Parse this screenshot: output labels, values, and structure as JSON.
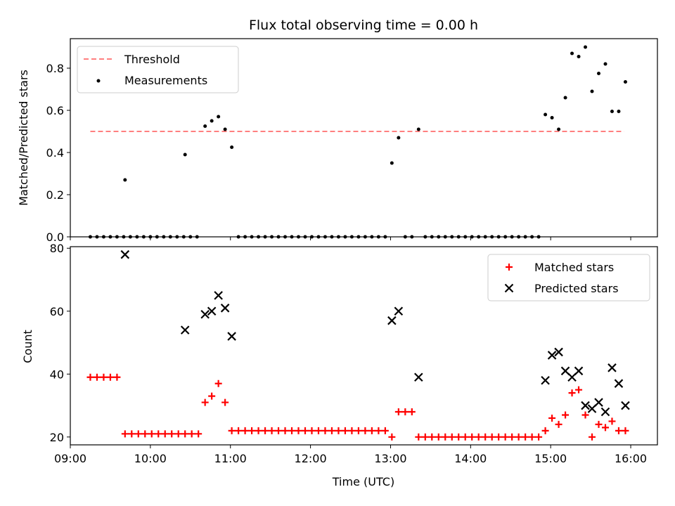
{
  "chart_data": [
    {
      "type": "scatter",
      "title": "Flux total observing time = 0.00 h",
      "xlabel": "",
      "ylabel": "Matched/Predicted stars",
      "xlim": [
        "09:00",
        "16:20"
      ],
      "ylim": [
        0,
        0.94
      ],
      "yticks": [
        0.0,
        0.2,
        0.4,
        0.6,
        0.8
      ],
      "ytick_labels": [
        "0.0",
        "0.2",
        "0.4",
        "0.6",
        "0.8"
      ],
      "legend": {
        "position": "top-left",
        "entries": [
          "Threshold",
          "Measurements"
        ]
      },
      "threshold": {
        "name": "Threshold",
        "value": 0.5,
        "x": [
          "09:15",
          "15:55"
        ],
        "color": "#ff7f7f"
      },
      "series": [
        {
          "name": "Measurements",
          "color": "#000000",
          "points": [
            [
              "09:15",
              0
            ],
            [
              "09:20",
              0
            ],
            [
              "09:25",
              0
            ],
            [
              "09:30",
              0
            ],
            [
              "09:35",
              0
            ],
            [
              "09:40",
              0
            ],
            [
              "09:41",
              0.27
            ],
            [
              "09:45",
              0
            ],
            [
              "09:50",
              0
            ],
            [
              "09:55",
              0
            ],
            [
              "10:00",
              0
            ],
            [
              "10:05",
              0
            ],
            [
              "10:10",
              0
            ],
            [
              "10:15",
              0
            ],
            [
              "10:20",
              0
            ],
            [
              "10:25",
              0
            ],
            [
              "10:26",
              0.39
            ],
            [
              "10:30",
              0
            ],
            [
              "10:35",
              0
            ],
            [
              "10:41",
              0.525
            ],
            [
              "10:46",
              0.55
            ],
            [
              "10:51",
              0.57
            ],
            [
              "10:56",
              0.51
            ],
            [
              "11:01",
              0.425
            ],
            [
              "11:06",
              0
            ],
            [
              "11:11",
              0
            ],
            [
              "11:16",
              0
            ],
            [
              "11:21",
              0
            ],
            [
              "11:26",
              0
            ],
            [
              "11:31",
              0
            ],
            [
              "11:36",
              0
            ],
            [
              "11:41",
              0
            ],
            [
              "11:46",
              0
            ],
            [
              "11:51",
              0
            ],
            [
              "11:56",
              0
            ],
            [
              "12:01",
              0
            ],
            [
              "12:06",
              0
            ],
            [
              "12:11",
              0
            ],
            [
              "12:16",
              0
            ],
            [
              "12:21",
              0
            ],
            [
              "12:26",
              0
            ],
            [
              "12:31",
              0
            ],
            [
              "12:36",
              0
            ],
            [
              "12:41",
              0
            ],
            [
              "12:46",
              0
            ],
            [
              "12:51",
              0
            ],
            [
              "12:56",
              0
            ],
            [
              "13:01",
              0.35
            ],
            [
              "13:06",
              0.47
            ],
            [
              "13:11",
              0
            ],
            [
              "13:16",
              0
            ],
            [
              "13:21",
              0.51
            ],
            [
              "13:26",
              0
            ],
            [
              "13:31",
              0
            ],
            [
              "13:36",
              0
            ],
            [
              "13:41",
              0
            ],
            [
              "13:46",
              0
            ],
            [
              "13:51",
              0
            ],
            [
              "13:56",
              0
            ],
            [
              "14:01",
              0
            ],
            [
              "14:06",
              0
            ],
            [
              "14:11",
              0
            ],
            [
              "14:16",
              0
            ],
            [
              "14:21",
              0
            ],
            [
              "14:26",
              0
            ],
            [
              "14:31",
              0
            ],
            [
              "14:36",
              0
            ],
            [
              "14:41",
              0
            ],
            [
              "14:46",
              0
            ],
            [
              "14:51",
              0
            ],
            [
              "14:56",
              0.58
            ],
            [
              "15:01",
              0.565
            ],
            [
              "15:06",
              0.51
            ],
            [
              "15:11",
              0.66
            ],
            [
              "15:16",
              0.87
            ],
            [
              "15:21",
              0.855
            ],
            [
              "15:26",
              0.9
            ],
            [
              "15:31",
              0.69
            ],
            [
              "15:36",
              0.775
            ],
            [
              "15:41",
              0.82
            ],
            [
              "15:46",
              0.595
            ],
            [
              "15:51",
              0.595
            ],
            [
              "15:56",
              0.735
            ]
          ]
        }
      ]
    },
    {
      "type": "scatter",
      "title": "",
      "xlabel": "Time (UTC)",
      "ylabel": "Count",
      "xlim": [
        "09:00",
        "16:20"
      ],
      "ylim": [
        17.5,
        80.5
      ],
      "yticks": [
        20,
        40,
        60,
        80
      ],
      "ytick_labels": [
        "20",
        "40",
        "60",
        "80"
      ],
      "xticks": [
        "09:00",
        "10:00",
        "11:00",
        "12:00",
        "13:00",
        "14:00",
        "15:00",
        "16:00"
      ],
      "xtick_labels": [
        "09:00",
        "10:00",
        "11:00",
        "12:00",
        "13:00",
        "14:00",
        "15:00",
        "16:00"
      ],
      "legend": {
        "position": "top-right",
        "entries": [
          "Matched stars",
          "Predicted stars"
        ]
      },
      "series": [
        {
          "name": "Matched stars",
          "marker": "plus",
          "color": "#ff0000",
          "points": [
            [
              "09:15",
              39
            ],
            [
              "09:20",
              39
            ],
            [
              "09:25",
              39
            ],
            [
              "09:30",
              39
            ],
            [
              "09:35",
              39
            ],
            [
              "09:41",
              21
            ],
            [
              "09:46",
              21
            ],
            [
              "09:51",
              21
            ],
            [
              "09:56",
              21
            ],
            [
              "10:01",
              21
            ],
            [
              "10:06",
              21
            ],
            [
              "10:11",
              21
            ],
            [
              "10:16",
              21
            ],
            [
              "10:21",
              21
            ],
            [
              "10:26",
              21
            ],
            [
              "10:31",
              21
            ],
            [
              "10:36",
              21
            ],
            [
              "10:41",
              31
            ],
            [
              "10:46",
              33
            ],
            [
              "10:51",
              37
            ],
            [
              "10:56",
              31
            ],
            [
              "11:01",
              22
            ],
            [
              "11:06",
              22
            ],
            [
              "11:11",
              22
            ],
            [
              "11:16",
              22
            ],
            [
              "11:21",
              22
            ],
            [
              "11:26",
              22
            ],
            [
              "11:31",
              22
            ],
            [
              "11:36",
              22
            ],
            [
              "11:41",
              22
            ],
            [
              "11:46",
              22
            ],
            [
              "11:51",
              22
            ],
            [
              "11:56",
              22
            ],
            [
              "12:01",
              22
            ],
            [
              "12:06",
              22
            ],
            [
              "12:11",
              22
            ],
            [
              "12:16",
              22
            ],
            [
              "12:21",
              22
            ],
            [
              "12:26",
              22
            ],
            [
              "12:31",
              22
            ],
            [
              "12:36",
              22
            ],
            [
              "12:41",
              22
            ],
            [
              "12:46",
              22
            ],
            [
              "12:51",
              22
            ],
            [
              "12:56",
              22
            ],
            [
              "13:01",
              20
            ],
            [
              "13:06",
              28
            ],
            [
              "13:11",
              28
            ],
            [
              "13:16",
              28
            ],
            [
              "13:21",
              20
            ],
            [
              "13:26",
              20
            ],
            [
              "13:31",
              20
            ],
            [
              "13:36",
              20
            ],
            [
              "13:41",
              20
            ],
            [
              "13:46",
              20
            ],
            [
              "13:51",
              20
            ],
            [
              "13:56",
              20
            ],
            [
              "14:01",
              20
            ],
            [
              "14:06",
              20
            ],
            [
              "14:11",
              20
            ],
            [
              "14:16",
              20
            ],
            [
              "14:21",
              20
            ],
            [
              "14:26",
              20
            ],
            [
              "14:31",
              20
            ],
            [
              "14:36",
              20
            ],
            [
              "14:41",
              20
            ],
            [
              "14:46",
              20
            ],
            [
              "14:51",
              20
            ],
            [
              "14:56",
              22
            ],
            [
              "15:01",
              26
            ],
            [
              "15:06",
              24
            ],
            [
              "15:11",
              27
            ],
            [
              "15:16",
              34
            ],
            [
              "15:21",
              35
            ],
            [
              "15:26",
              27
            ],
            [
              "15:31",
              20
            ],
            [
              "15:36",
              24
            ],
            [
              "15:41",
              23
            ],
            [
              "15:46",
              25
            ],
            [
              "15:51",
              22
            ],
            [
              "15:56",
              22
            ]
          ]
        },
        {
          "name": "Predicted stars",
          "marker": "x",
          "color": "#000000",
          "points": [
            [
              "09:41",
              78
            ],
            [
              "10:26",
              54
            ],
            [
              "10:41",
              59
            ],
            [
              "10:46",
              60
            ],
            [
              "10:51",
              65
            ],
            [
              "10:56",
              61
            ],
            [
              "11:01",
              52
            ],
            [
              "13:01",
              57
            ],
            [
              "13:06",
              60
            ],
            [
              "13:21",
              39
            ],
            [
              "14:56",
              38
            ],
            [
              "15:01",
              46
            ],
            [
              "15:06",
              47
            ],
            [
              "15:11",
              41
            ],
            [
              "15:16",
              39
            ],
            [
              "15:21",
              41
            ],
            [
              "15:26",
              30
            ],
            [
              "15:31",
              29
            ],
            [
              "15:36",
              31
            ],
            [
              "15:41",
              28
            ],
            [
              "15:46",
              42
            ],
            [
              "15:51",
              37
            ],
            [
              "15:56",
              30
            ]
          ]
        }
      ]
    }
  ]
}
